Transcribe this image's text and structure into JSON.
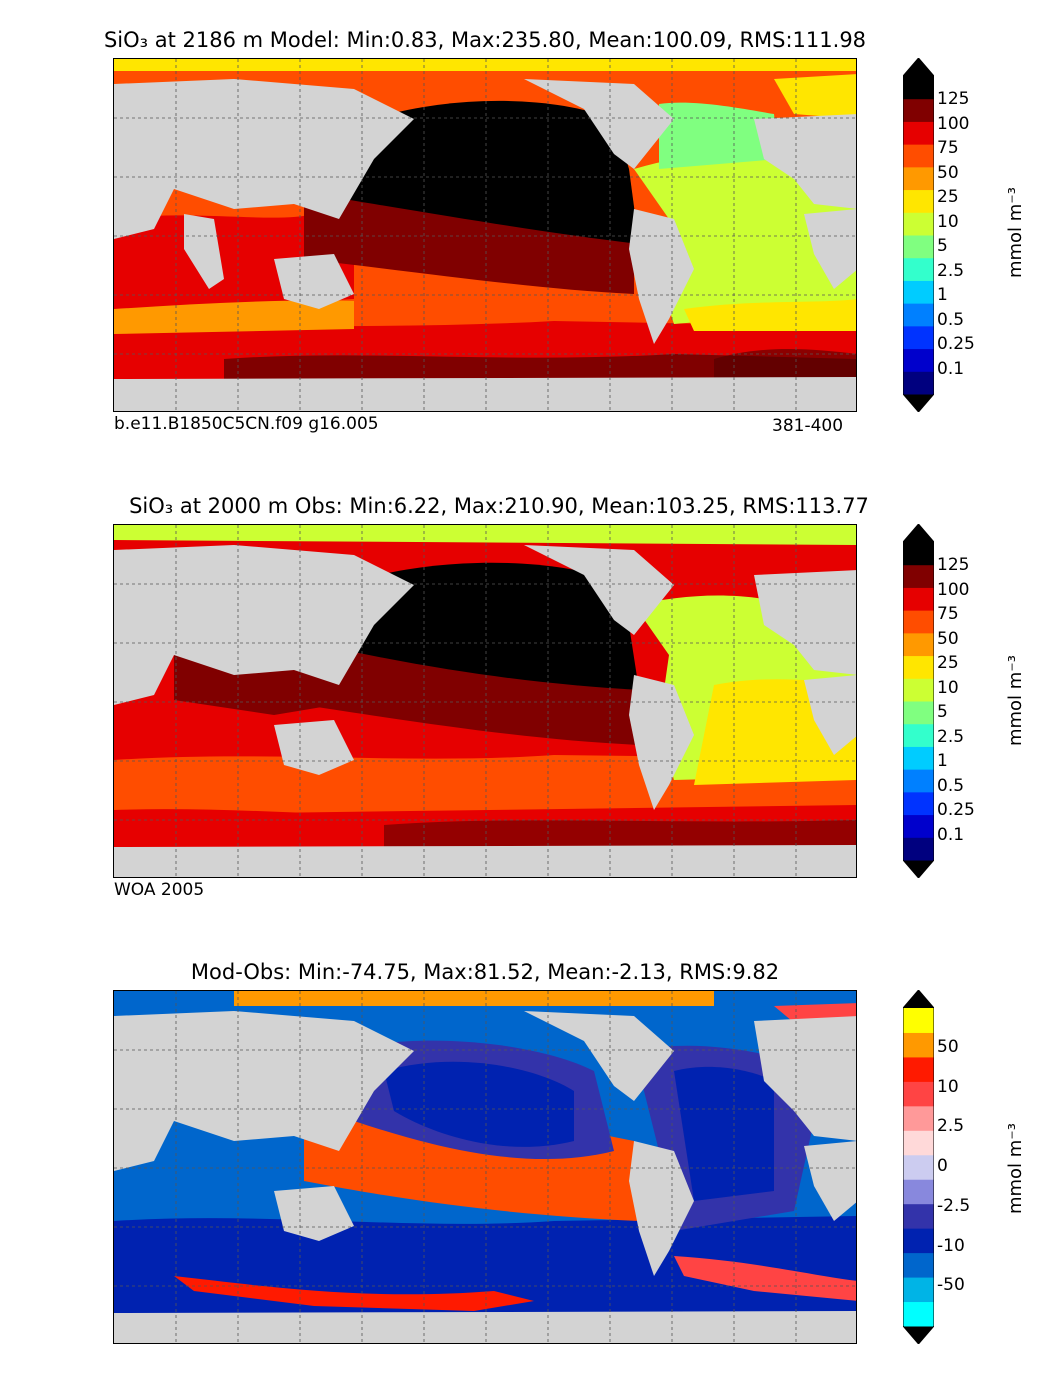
{
  "colors": {
    "land": "#d3d3d3",
    "missing": "#ffffff",
    "sio3_scale": [
      "#00007f",
      "#0000cc",
      "#0033ff",
      "#0080ff",
      "#00ccff",
      "#33ffcc",
      "#80ff80",
      "#ccff33",
      "#ffe600",
      "#ff9900",
      "#ff4d00",
      "#e60000",
      "#800000",
      "#000000"
    ],
    "diff_scale": [
      "#00ffff",
      "#00b4e6",
      "#0066cc",
      "#0022b0",
      "#3333aa",
      "#8888dd",
      "#ccccf0",
      "#ffd9d9",
      "#ff9999",
      "#ff4444",
      "#ff1a00",
      "#ff9900",
      "#ffff00"
    ]
  },
  "panels": [
    {
      "title": "SiO₃ at 2186 m Model: Min:0.83, Max:235.80, Mean:100.09, RMS:111.98",
      "note_left": "b.e11.B1850C5CN.f09 g16.005",
      "note_right": "381-400",
      "colorbar_units": "mmol m⁻³",
      "colorbar_labels": [
        "125",
        "100",
        "75",
        "50",
        "25",
        "10",
        "5",
        "2.5",
        "1",
        "0.5",
        "0.25",
        "0.1"
      ]
    },
    {
      "title": "SiO₃ at 2000 m Obs: Min:6.22, Max:210.90, Mean:103.25, RMS:113.77",
      "note_left": "WOA 2005",
      "note_right": "",
      "colorbar_units": "mmol m⁻³",
      "colorbar_labels": [
        "125",
        "100",
        "75",
        "50",
        "25",
        "10",
        "5",
        "2.5",
        "1",
        "0.5",
        "0.25",
        "0.1"
      ]
    },
    {
      "title": "Mod-Obs: Min:-74.75, Max:81.52, Mean:-2.13, RMS:9.82",
      "note_left": "",
      "note_right": "",
      "colorbar_units": "mmol m⁻³",
      "colorbar_labels": [
        "50",
        "10",
        "2.5",
        "0",
        "-2.5",
        "-10",
        "-50"
      ]
    }
  ]
}
